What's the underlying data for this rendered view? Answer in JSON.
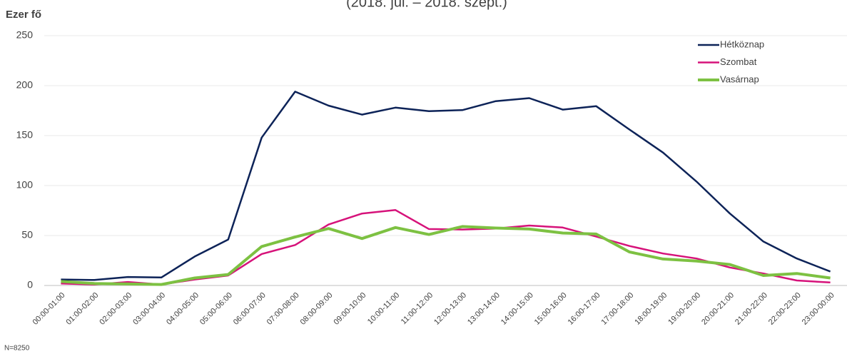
{
  "chart_data": {
    "type": "line",
    "subtitle": "(2018. júl. – 2018. szept.)",
    "y_label": "Ezer fő",
    "note": "N=8250",
    "categories": [
      "00:00-01:00",
      "01:00-02:00",
      "02:00-03:00",
      "03:00-04:00",
      "04:00-05:00",
      "05:00-06:00",
      "06:00-07:00",
      "07:00-08:00",
      "08:00-09:00",
      "09:00-10:00",
      "10:00-11:00",
      "11:00-12:00",
      "12:00-13:00",
      "13:00-14:00",
      "14:00-15:00",
      "15:00-16:00",
      "16:00-17:00",
      "17:00-18:00",
      "18:00-19:00",
      "19:00-20:00",
      "20:00-21:00",
      "21:00-22:00",
      "22:00-23:00",
      "23:00-00:00"
    ],
    "series": [
      {
        "name": "Hétköznap",
        "color": "#0d2358",
        "values": [
          6,
          5.5,
          8.5,
          8,
          29,
          46,
          148,
          194,
          180,
          171,
          178,
          174.5,
          175.5,
          184.5,
          187.5,
          176,
          179.5,
          156,
          133,
          104,
          72,
          44,
          27,
          14
        ]
      },
      {
        "name": "Szombat",
        "color": "#d6127a",
        "values": [
          2,
          1,
          3.5,
          1,
          6,
          10,
          31.5,
          40.5,
          61,
          72,
          75.5,
          56.5,
          56,
          57,
          60,
          58,
          49,
          39.5,
          32,
          27,
          18,
          12,
          5,
          3
        ]
      },
      {
        "name": "Vasárnap",
        "color": "#7dc142",
        "values": [
          4,
          2,
          1.5,
          1,
          7.5,
          11,
          39,
          48.5,
          57,
          47,
          58,
          51,
          59,
          57.5,
          56.5,
          52.5,
          51.5,
          33.5,
          26.5,
          24.5,
          21,
          10,
          12,
          7.5
        ]
      }
    ],
    "ylim": [
      0,
      250
    ],
    "yticks": [
      0,
      50,
      100,
      150,
      200,
      250
    ],
    "grid": true,
    "legend": "top-right"
  }
}
